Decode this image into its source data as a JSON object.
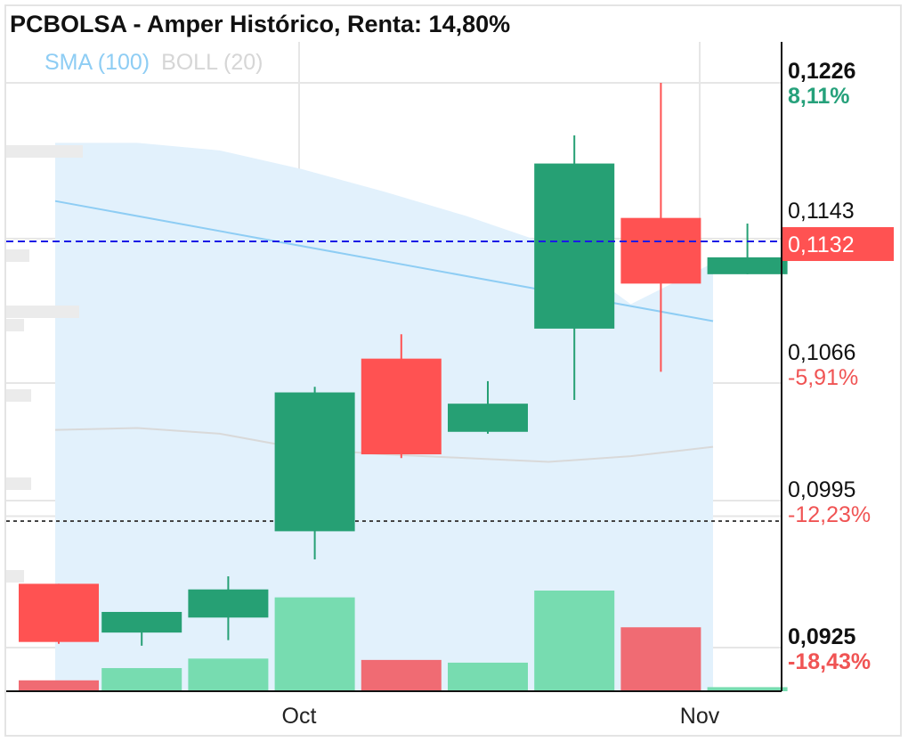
{
  "title": "PCBOLSA - Amper Histórico, Renta: 14,80%",
  "indicators": [
    {
      "label": "SMA (100)",
      "color": "#8ecdf4"
    },
    {
      "label": "BOLL (20)",
      "color": "#d6d6d6"
    }
  ],
  "last_price_label": "0,1132",
  "price_axis": {
    "labels": [
      {
        "value": 0.1226,
        "price": "0,1226",
        "pct": "8,11%",
        "pct_color": "#26a17b",
        "bold": true
      },
      {
        "value": 0.1143,
        "price": "0,1143",
        "pct": "",
        "pct_color": "",
        "bold": false
      },
      {
        "value": 0.1066,
        "price": "0,1066",
        "pct": "-5,91%",
        "pct_color": "#f05454",
        "bold": false
      },
      {
        "value": 0.0995,
        "price": "0,0995",
        "pct": "-12,23%",
        "pct_color": "#f05454",
        "bold": false
      },
      {
        "value": 0.0925,
        "price": "0,0925",
        "pct": "-18,43%",
        "pct_color": "#f05454",
        "bold": true
      }
    ]
  },
  "colors": {
    "up": "#26a074",
    "down": "#ff5252",
    "vol_up": "#77dcb0",
    "vol_down": "#f06b73",
    "boll_band": "#e2f1fc",
    "sma_line": "#8ecdf4",
    "last_price_line": "#1a1ae6",
    "ref_line": "#444444"
  },
  "chart_data": {
    "type": "candlestick",
    "title": "PCBOLSA - Amper Histórico, Renta: 14,80%",
    "x_tick_labels": [
      "Oct",
      "Nov"
    ],
    "y_range": [
      0.0917,
      0.124
    ],
    "last_price": 0.1132,
    "reference_price": 0.0957,
    "candles": [
      {
        "open": 0.0959,
        "high": 0.0959,
        "low": 0.0927,
        "close": 0.0928,
        "volume": 0.08
      },
      {
        "open": 0.0933,
        "high": 0.0942,
        "low": 0.0926,
        "close": 0.0944,
        "volume": 0.17
      },
      {
        "open": 0.0941,
        "high": 0.0963,
        "low": 0.0929,
        "close": 0.0956,
        "volume": 0.24
      },
      {
        "open": 0.0987,
        "high": 0.1064,
        "low": 0.0972,
        "close": 0.1061,
        "volume": 0.69
      },
      {
        "open": 0.1079,
        "high": 0.1092,
        "low": 0.1026,
        "close": 0.1028,
        "volume": 0.23
      },
      {
        "open": 0.104,
        "high": 0.1067,
        "low": 0.1039,
        "close": 0.1055,
        "volume": 0.21
      },
      {
        "open": 0.1095,
        "high": 0.1198,
        "low": 0.1057,
        "close": 0.1183,
        "volume": 0.74
      },
      {
        "open": 0.1154,
        "high": 0.1226,
        "low": 0.1072,
        "close": 0.1119,
        "volume": 0.47
      },
      {
        "open": 0.1124,
        "high": 0.1151,
        "low": 0.1124,
        "close": 0.1133,
        "volume": 0.03
      }
    ],
    "sma_100": [
      0.1163,
      null,
      null,
      null,
      null,
      null,
      null,
      null,
      0.1099
    ],
    "boll_20": {
      "upper": [
        0.1194,
        0.1194,
        0.119,
        0.118,
        0.1168,
        0.1155,
        0.114,
        0.1108,
        0.113
      ],
      "middle": [
        0.1041,
        0.1042,
        0.1039,
        0.1031,
        0.1028,
        0.1026,
        0.1024,
        0.1027,
        0.1032
      ],
      "lower": [
        0.0917,
        0.0917,
        0.0917,
        0.0917,
        0.0917,
        0.0917,
        0.0917,
        0.0917,
        0.0917
      ]
    }
  }
}
